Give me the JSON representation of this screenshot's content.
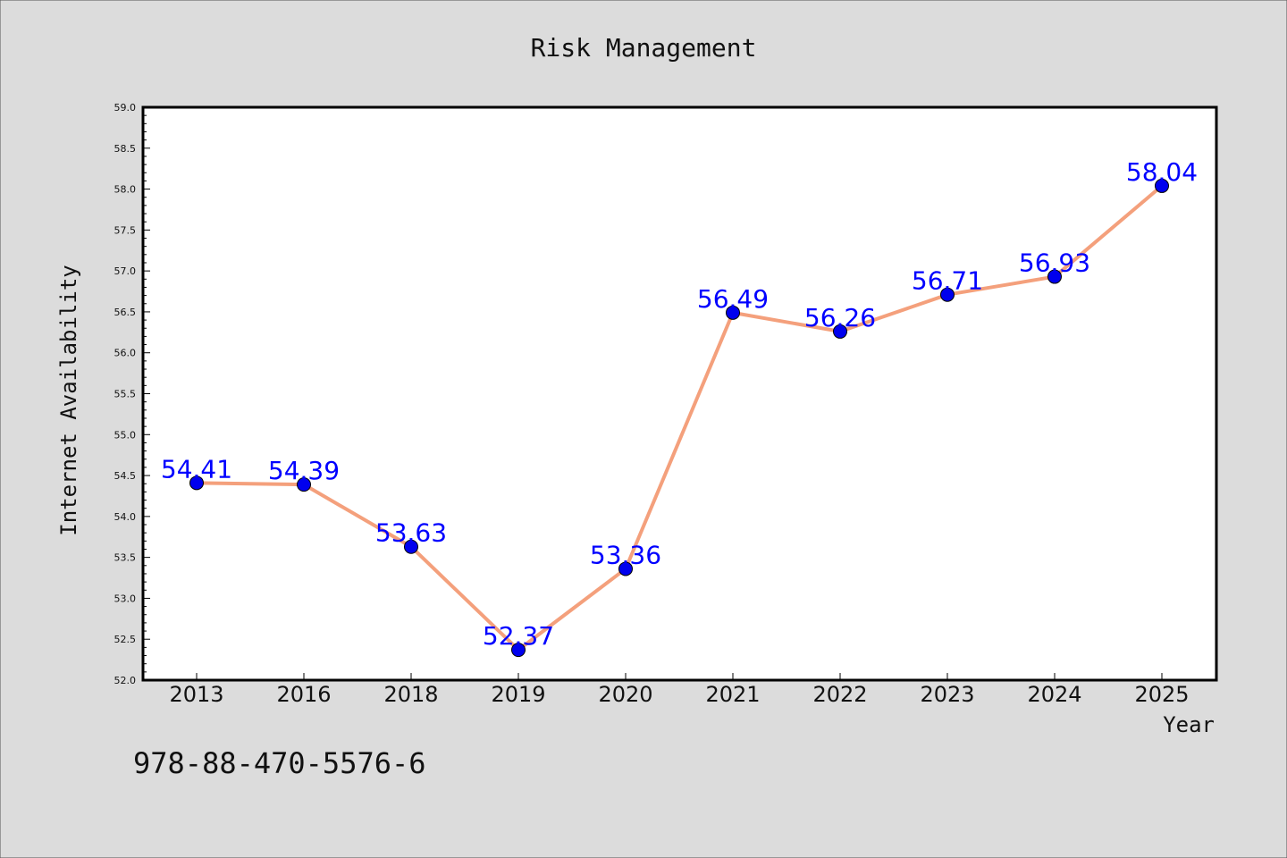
{
  "chart_data": {
    "type": "line",
    "title": "Risk Management",
    "xlabel": "Year",
    "ylabel": "Internet Availability",
    "categories": [
      "2013",
      "2016",
      "2018",
      "2019",
      "2020",
      "2021",
      "2022",
      "2023",
      "2024",
      "2025"
    ],
    "series": [
      {
        "values": [
          54.41,
          54.39,
          53.63,
          52.37,
          53.36,
          56.49,
          56.26,
          56.71,
          56.93,
          58.04
        ]
      }
    ],
    "data_labels": [
      "54.41",
      "54.39",
      "53.63",
      "52.37",
      "53.36",
      "56.49",
      "56.26",
      "56.71",
      "56.93",
      "58.04"
    ],
    "ylim": [
      52.0,
      59.0
    ],
    "yticks": [
      "52.0",
      "52.5",
      "53.0",
      "53.5",
      "54.0",
      "54.5",
      "55.0",
      "55.5",
      "56.0",
      "56.5",
      "57.0",
      "57.5",
      "58.0",
      "58.5",
      "59.0"
    ],
    "grid": false,
    "legend": "none",
    "colors": {
      "line": "#f4a07c",
      "marker": "#0000ee",
      "label": "#0000ff",
      "background": "#dcdcdc",
      "plot_background": "#ffffff"
    }
  },
  "footer": {
    "isbn": "978-88-470-5576-6"
  }
}
